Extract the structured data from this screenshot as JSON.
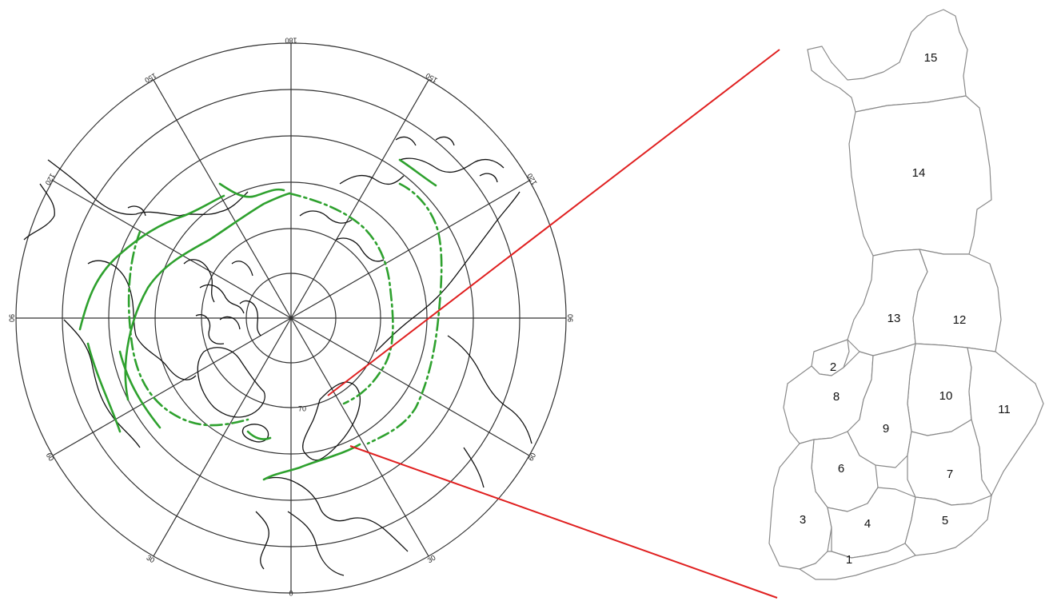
{
  "polar_map": {
    "longitude_labels": [
      "180",
      "150",
      "150",
      "120",
      "120",
      "90",
      "90",
      "60",
      "60",
      "30",
      "30",
      "0"
    ],
    "latitude_label": "70"
  },
  "finland_map": {
    "regions": [
      {
        "id": "r1",
        "label": "1"
      },
      {
        "id": "r2",
        "label": "2"
      },
      {
        "id": "r3",
        "label": "3"
      },
      {
        "id": "r4",
        "label": "4"
      },
      {
        "id": "r5",
        "label": "5"
      },
      {
        "id": "r6",
        "label": "6"
      },
      {
        "id": "r7",
        "label": "7"
      },
      {
        "id": "r8",
        "label": "8"
      },
      {
        "id": "r9",
        "label": "9"
      },
      {
        "id": "r10",
        "label": "10"
      },
      {
        "id": "r11",
        "label": "11"
      },
      {
        "id": "r12",
        "label": "12"
      },
      {
        "id": "r13",
        "label": "13"
      },
      {
        "id": "r14",
        "label": "14"
      },
      {
        "id": "r15",
        "label": "15"
      }
    ]
  },
  "colors": {
    "isoline": "#2ea12e",
    "zoom_lines": "#e02020",
    "coastline": "#111111",
    "region_border": "#8a8a8a"
  }
}
